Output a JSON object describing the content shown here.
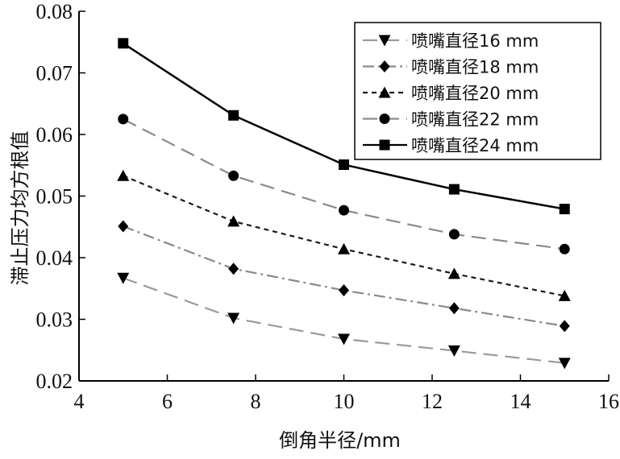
{
  "chart_data": {
    "type": "line",
    "xlabel": "倒角半径/mm",
    "ylabel": "滞止压力均方根值",
    "xlim": [
      4,
      16
    ],
    "ylim": [
      0.02,
      0.08
    ],
    "xticks": [
      4,
      6,
      8,
      10,
      12,
      14,
      16
    ],
    "yticks": [
      "0.02",
      "0.03",
      "0.04",
      "0.05",
      "0.06",
      "0.07",
      "0.08"
    ],
    "legend_position": "top-right",
    "grid": false,
    "x": [
      5,
      7.5,
      10,
      12.5,
      15
    ],
    "series": [
      {
        "name": "喷嘴直径16 mm",
        "values": [
          0.0367,
          0.0302,
          0.0268,
          0.0249,
          0.0229
        ],
        "color": "#9a9a9a",
        "marker": "triangle-down",
        "dash": "long-dash"
      },
      {
        "name": "喷嘴直径18 mm",
        "values": [
          0.0451,
          0.0382,
          0.0347,
          0.0318,
          0.0289
        ],
        "color": "#8a8a8a",
        "marker": "diamond",
        "dash": "dash-dot"
      },
      {
        "name": "喷嘴直径20 mm",
        "values": [
          0.0533,
          0.0459,
          0.0414,
          0.0374,
          0.0338
        ],
        "color": "#1a1a1a",
        "marker": "triangle-up",
        "dash": "short-dash"
      },
      {
        "name": "喷嘴直径22 mm",
        "values": [
          0.0625,
          0.0533,
          0.0477,
          0.0438,
          0.0414
        ],
        "color": "#8a8a8a",
        "marker": "circle",
        "dash": "long-dash"
      },
      {
        "name": "喷嘴直径24 mm",
        "values": [
          0.0748,
          0.0631,
          0.0551,
          0.0511,
          0.0479
        ],
        "color": "#000000",
        "marker": "square",
        "dash": "solid"
      }
    ]
  }
}
